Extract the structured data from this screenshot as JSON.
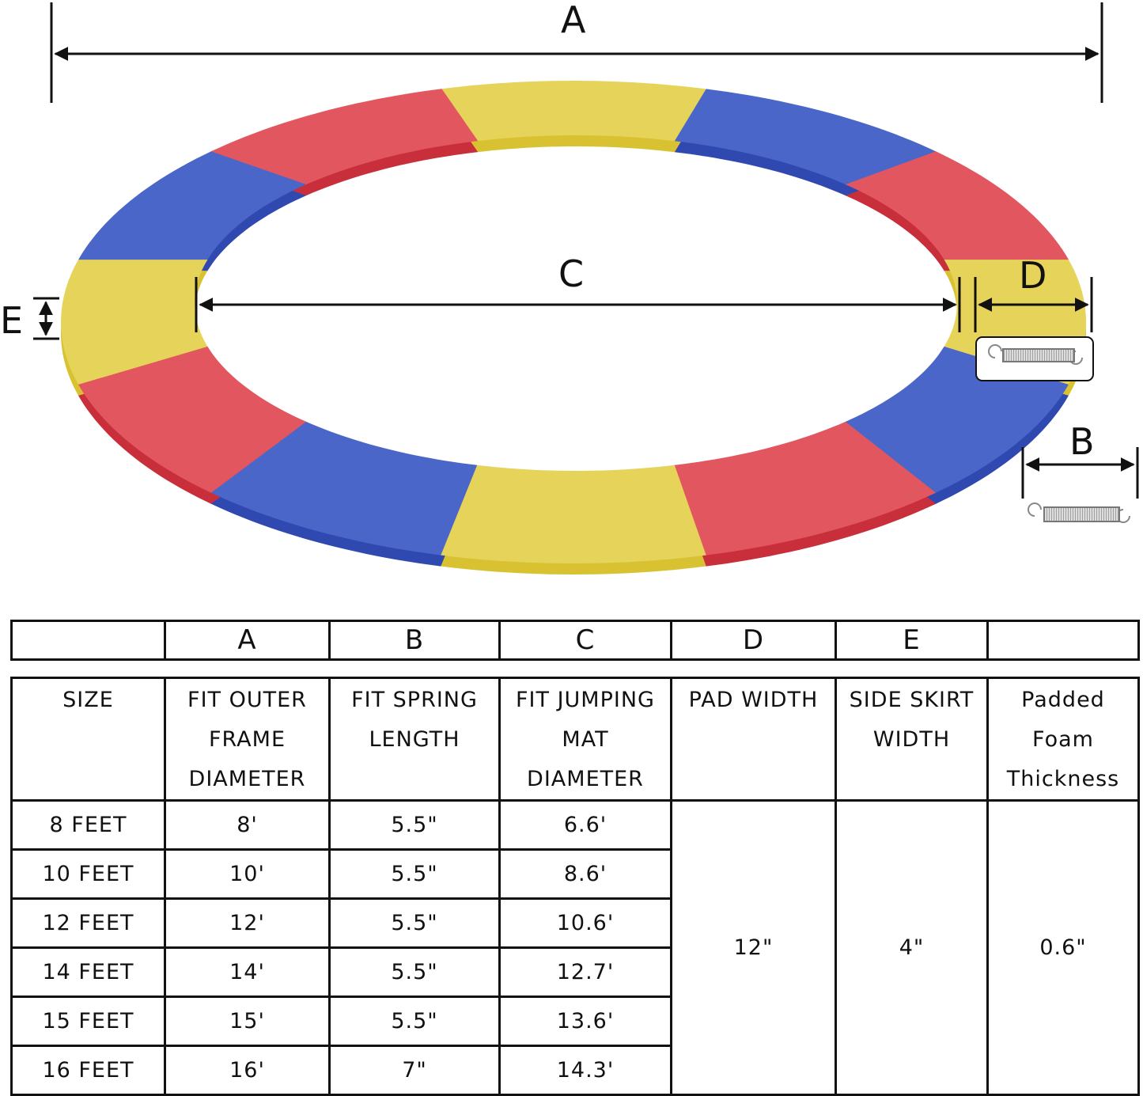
{
  "labels": {
    "a": "A",
    "b": "B",
    "c": "C",
    "d": "D",
    "e": "E"
  },
  "ring_colors": {
    "yellow": "#e6d35a",
    "blue": "#4a66c8",
    "red": "#e2575f",
    "edge_yellow": "#d9c232",
    "edge_blue": "#2f49b0",
    "edge_red": "#c92f3a"
  },
  "ring_segment_sequence_clockwise_from_top": [
    "yellow",
    "blue",
    "red",
    "yellow",
    "blue",
    "red",
    "yellow",
    "blue",
    "red",
    "yellow",
    "blue",
    "red"
  ],
  "letters_row": [
    "",
    "A",
    "B",
    "C",
    "D",
    "E",
    ""
  ],
  "headers": [
    "SIZE",
    "FIT OUTER\nFRAME\nDIAMETER",
    "FIT SPRING\nLENGTH",
    "FIT JUMPING\nMAT\nDIAMETER",
    "PAD WIDTH",
    "SIDE SKIRT\nWIDTH",
    "Padded\nFoam\nThickness"
  ],
  "rows": [
    {
      "size": "8 FEET",
      "a": "8'",
      "b": "5.5\"",
      "c": "6.6'"
    },
    {
      "size": "10 FEET",
      "a": "10'",
      "b": "5.5\"",
      "c": "8.6'"
    },
    {
      "size": "12 FEET",
      "a": "12'",
      "b": "5.5\"",
      "c": "10.6'"
    },
    {
      "size": "14 FEET",
      "a": "14'",
      "b": "5.5\"",
      "c": "12.7'"
    },
    {
      "size": "15 FEET",
      "a": "15'",
      "b": "5.5\"",
      "c": "13.6'"
    },
    {
      "size": "16 FEET",
      "a": "16'",
      "b": "7\"",
      "c": "14.3'"
    }
  ],
  "shared": {
    "pad_width": "12\"",
    "side_skirt_width": "4\"",
    "foam_thickness": "0.6\""
  }
}
